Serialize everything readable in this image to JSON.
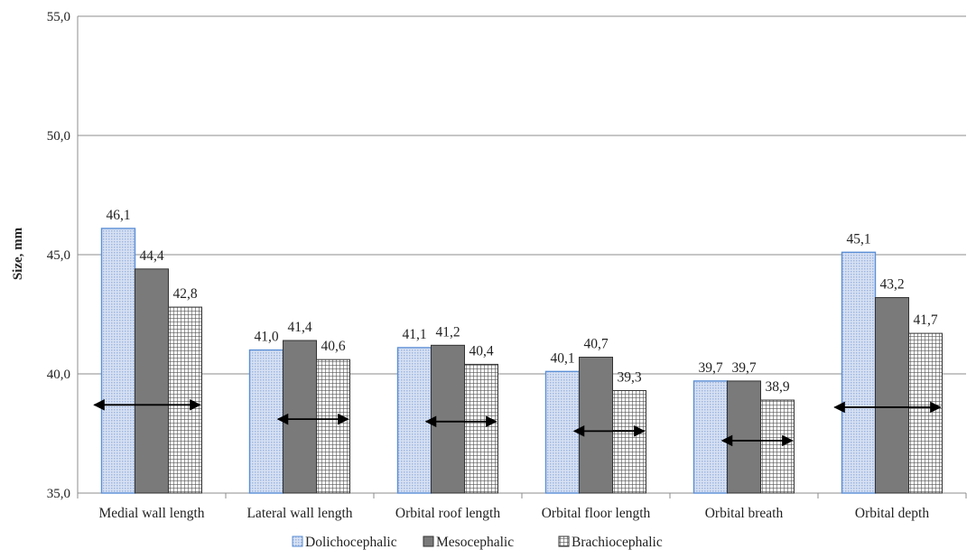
{
  "chart_data": {
    "type": "bar",
    "title": "",
    "xlabel": "",
    "ylabel": "Size, mm",
    "ylim": [
      35,
      55
    ],
    "ytick_step": 5,
    "yticks": [
      "35,0",
      "40,0",
      "45,0",
      "50,0",
      "55,0"
    ],
    "grid": true,
    "legend_position": "bottom",
    "categories": [
      "Medial wall length",
      "Lateral wall length",
      "Orbital roof length",
      "Orbital floor length",
      "Orbital breath",
      "Orbital depth"
    ],
    "series": [
      {
        "name": "Dolichocephalic",
        "values": [
          46.1,
          41.0,
          41.1,
          40.1,
          39.7,
          45.1
        ],
        "labels": [
          "46,1",
          "41,0",
          "41,1",
          "40,1",
          "39,7",
          "45,1"
        ],
        "fill": "#c9d6ee",
        "stroke": "#5b8fd6",
        "pattern": "fine-dots"
      },
      {
        "name": "Mesocephalic",
        "values": [
          44.4,
          41.4,
          41.2,
          40.7,
          39.7,
          43.2
        ],
        "labels": [
          "44,4",
          "41,4",
          "41,2",
          "40,7",
          "39,7",
          "43,2"
        ],
        "fill": "#7a7a7a",
        "stroke": "#333333",
        "pattern": "solid"
      },
      {
        "name": "Brachiocephalic",
        "values": [
          42.8,
          40.6,
          40.4,
          39.3,
          38.9,
          41.7
        ],
        "labels": [
          "42,8",
          "40,6",
          "40,4",
          "39,3",
          "38,9",
          "41,7"
        ],
        "fill": "#ffffff",
        "stroke": "#333333",
        "pattern": "grid"
      }
    ],
    "annotations": {
      "type": "double-headed-arrows",
      "arrows": [
        {
          "category_index": 0,
          "y": 38.7,
          "span": "all-bars"
        },
        {
          "category_index": 1,
          "y": 38.1,
          "span": "mid-to-right"
        },
        {
          "category_index": 2,
          "y": 38.0,
          "span": "mid-to-right"
        },
        {
          "category_index": 3,
          "y": 37.6,
          "span": "mid-to-right"
        },
        {
          "category_index": 4,
          "y": 37.2,
          "span": "mid-to-right"
        },
        {
          "category_index": 5,
          "y": 38.6,
          "span": "all-bars"
        }
      ]
    }
  }
}
